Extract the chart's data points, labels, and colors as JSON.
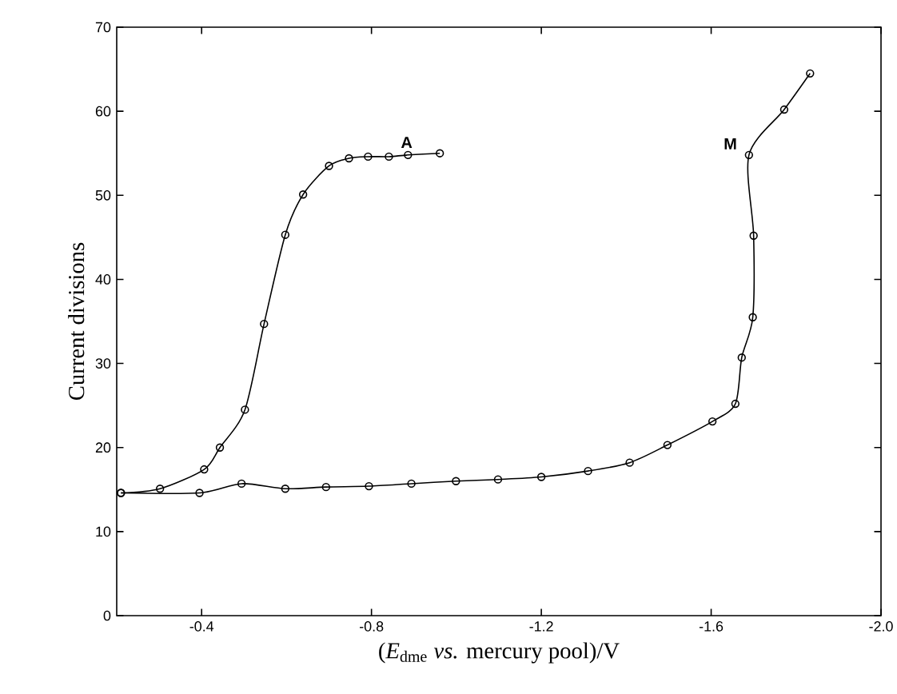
{
  "chart_data": {
    "type": "line",
    "xlabel": "(*E*$_{dme}$ *vs.* mercury pool)/V",
    "ylabel": "Current divisions",
    "xlim": [
      -0.2,
      -2.0
    ],
    "ylim": [
      0,
      70
    ],
    "xticks": [
      {
        "value": -0.4,
        "label": "-0.4"
      },
      {
        "value": -0.8,
        "label": "-0.8"
      },
      {
        "value": -1.2,
        "label": "-1.2"
      },
      {
        "value": -1.6,
        "label": "-1.6"
      },
      {
        "value": -2.0,
        "label": "-2.0"
      }
    ],
    "yticks": [
      0,
      10,
      20,
      30,
      40,
      50,
      60,
      70
    ],
    "marker": "circle",
    "line_style": "solid",
    "grid": false,
    "legend": false,
    "series": [
      {
        "name": "A",
        "color": "#000000",
        "x": [
          -0.21,
          -0.302,
          -0.406,
          -0.443,
          -0.502,
          -0.547,
          -0.597,
          -0.639,
          -0.7,
          -0.747,
          -0.792,
          -0.841,
          -0.886,
          -0.961
        ],
        "values": [
          14.6,
          15.1,
          17.4,
          20.0,
          24.5,
          34.7,
          45.3,
          50.1,
          53.5,
          54.4,
          54.6,
          54.6,
          54.8,
          55.0
        ]
      },
      {
        "name": "M",
        "color": "#000000",
        "x": [
          -0.21,
          -0.395,
          -0.494,
          -0.597,
          -0.693,
          -0.794,
          -0.894,
          -0.999,
          -1.098,
          -1.2,
          -1.31,
          -1.408,
          -1.497,
          -1.603,
          -1.657,
          -1.672,
          -1.698,
          -1.7,
          -1.689,
          -1.772,
          -1.833
        ],
        "values": [
          14.6,
          14.6,
          15.7,
          15.1,
          15.3,
          15.4,
          15.7,
          16.0,
          16.2,
          16.5,
          17.2,
          18.2,
          20.3,
          23.1,
          25.2,
          30.7,
          35.5,
          45.2,
          54.8,
          60.2,
          64.5
        ]
      }
    ]
  }
}
